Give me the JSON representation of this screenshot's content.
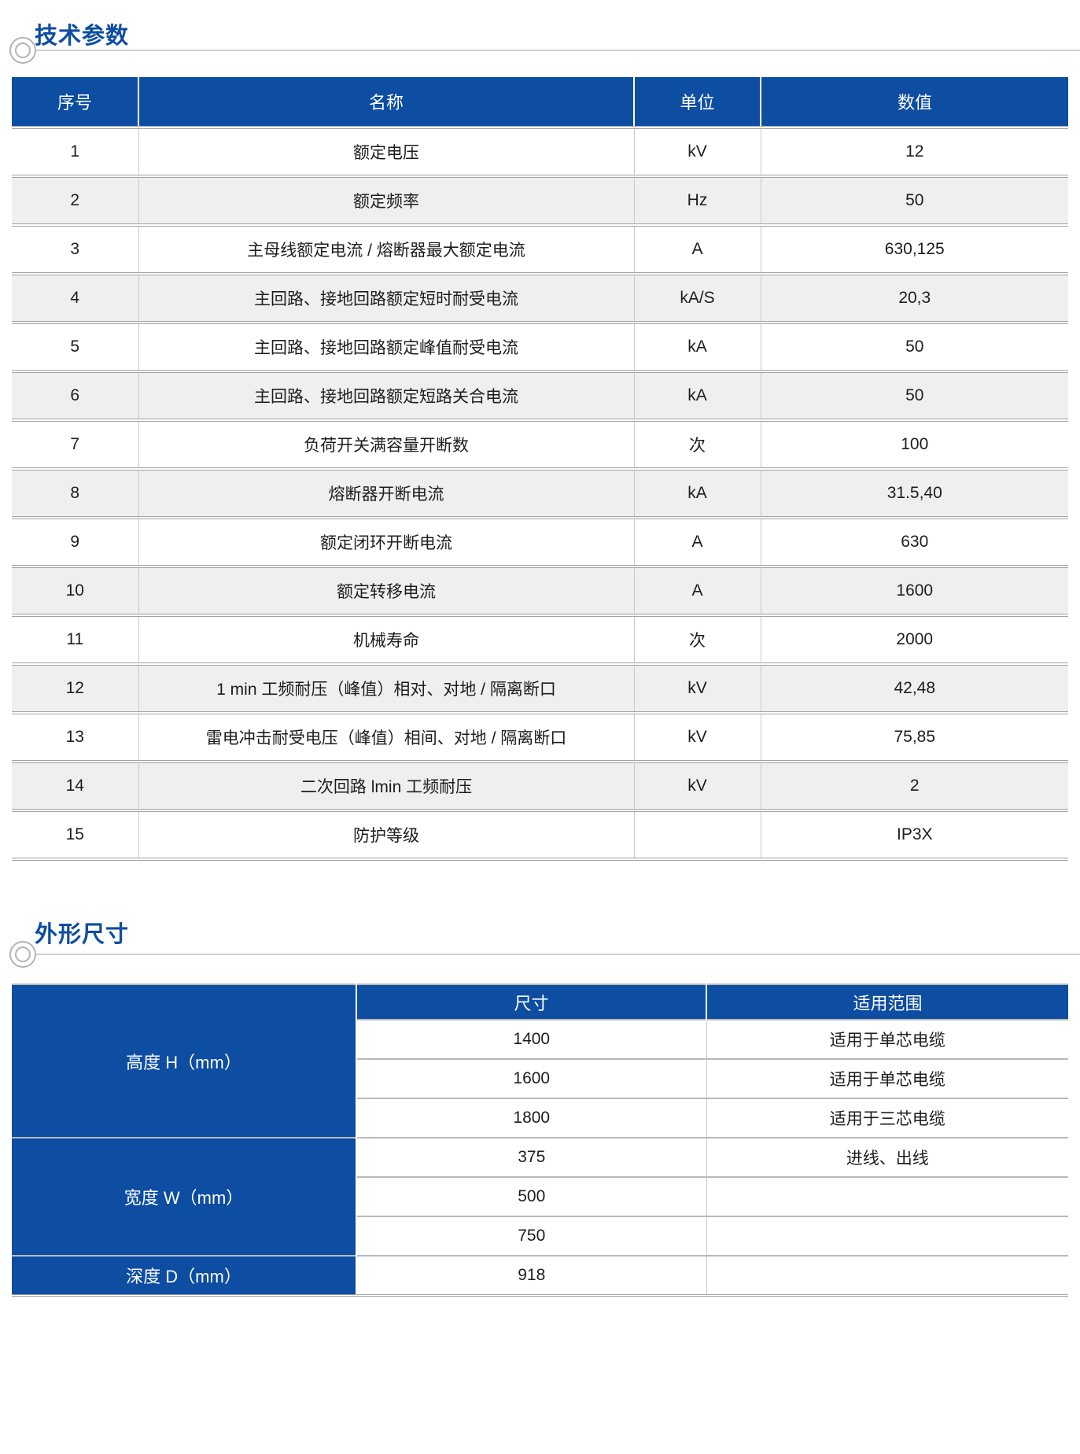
{
  "colors": {
    "primary_blue": "#0d4da2",
    "row_alt_gray": "#efefef",
    "rule_gray": "#cfd2d6"
  },
  "sections": {
    "tech": {
      "title": "技术参数"
    },
    "dims": {
      "title": "外形尺寸"
    }
  },
  "tech_table": {
    "headers": [
      "序号",
      "名称",
      "单位",
      "数值"
    ],
    "rows": [
      [
        "1",
        "额定电压",
        "kV",
        "12"
      ],
      [
        "2",
        "额定频率",
        "Hz",
        "50"
      ],
      [
        "3",
        "主母线额定电流 / 熔断器最大额定电流",
        "A",
        "630,125"
      ],
      [
        "4",
        "主回路、接地回路额定短时耐受电流",
        "kA/S",
        "20,3"
      ],
      [
        "5",
        "主回路、接地回路额定峰值耐受电流",
        "kA",
        "50"
      ],
      [
        "6",
        "主回路、接地回路额定短路关合电流",
        "kA",
        "50"
      ],
      [
        "7",
        "负荷开关满容量开断数",
        "次",
        "100"
      ],
      [
        "8",
        "熔断器开断电流",
        "kA",
        "31.5,40"
      ],
      [
        "9",
        "额定闭环开断电流",
        "A",
        "630"
      ],
      [
        "10",
        "额定转移电流",
        "A",
        "1600"
      ],
      [
        "11",
        "机械寿命",
        "次",
        "2000"
      ],
      [
        "12",
        "1 min 工频耐压（峰值）相对、对地 / 隔离断口",
        "kV",
        "42,48"
      ],
      [
        "13",
        "雷电冲击耐受电压（峰值）相间、对地 / 隔离断口",
        "kV",
        "75,85"
      ],
      [
        "14",
        "二次回路 lmin 工频耐压",
        "kV",
        "2"
      ],
      [
        "15",
        "防护等级",
        "",
        "IP3X"
      ]
    ]
  },
  "dim_table": {
    "headers": [
      "尺寸",
      "适用范围"
    ],
    "groups": [
      {
        "label": "高度 H（mm）",
        "rows": [
          [
            "1400",
            "适用于单芯电缆"
          ],
          [
            "1600",
            "适用于单芯电缆"
          ],
          [
            "1800",
            "适用于三芯电缆"
          ]
        ]
      },
      {
        "label": "宽度 W（mm）",
        "rows": [
          [
            "375",
            "进线、出线"
          ],
          [
            "500",
            ""
          ],
          [
            "750",
            ""
          ]
        ]
      },
      {
        "label": "深度 D（mm）",
        "rows": [
          [
            "918",
            ""
          ]
        ]
      }
    ]
  }
}
